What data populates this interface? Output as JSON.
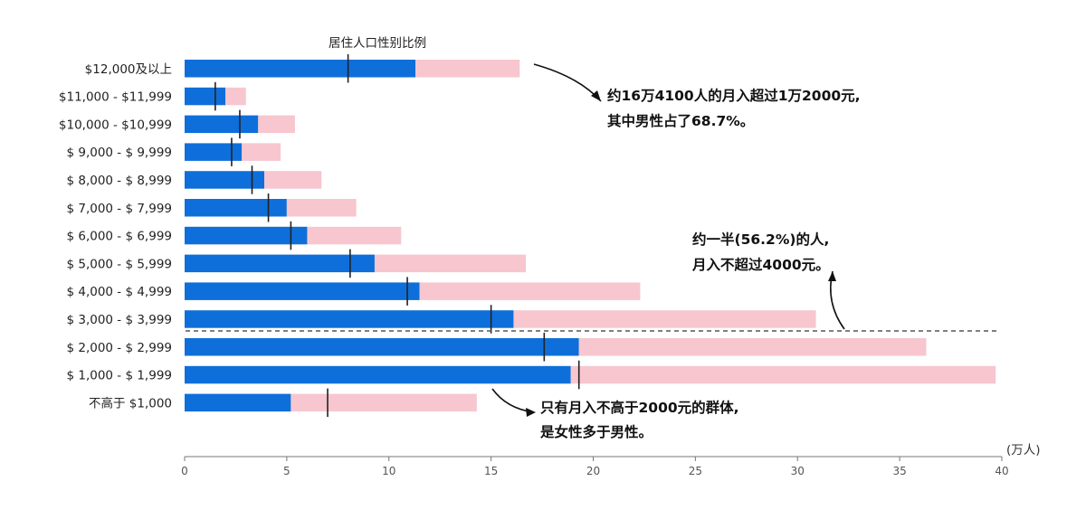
{
  "chart_data": {
    "type": "bar",
    "orientation": "horizontal",
    "stacked": true,
    "categories": [
      "$12,000及以上",
      "$11,000 - $11,999",
      "$10,000 - $10,999",
      "$ 9,000 - $ 9,999",
      "$ 8,000 - $ 8,999",
      "$ 7,000 - $ 7,999",
      "$ 6,000 - $ 6,999",
      "$ 5,000 - $ 5,999",
      "$ 4,000 - $ 4,999",
      "$ 3,000 - $ 3,999",
      "$ 2,000 - $ 2,999",
      "$ 1,000 - $ 1,999",
      "不高于 $1,000"
    ],
    "series": [
      {
        "values": [
          11.3,
          2.0,
          3.6,
          2.8,
          3.9,
          5.0,
          6.0,
          9.3,
          11.5,
          16.1,
          19.3,
          18.9,
          5.2
        ]
      },
      {
        "values": [
          5.1,
          1.0,
          1.8,
          1.9,
          2.8,
          3.4,
          4.6,
          7.4,
          10.8,
          14.8,
          17.0,
          20.8,
          9.1
        ]
      }
    ],
    "gender_ratio_marker": [
      8.0,
      1.5,
      2.7,
      2.3,
      3.3,
      4.1,
      5.2,
      8.1,
      10.9,
      15.0,
      17.6,
      19.3,
      7.0
    ],
    "colors": {
      "male": "#0e6fda",
      "female": "#f7c6cf",
      "marker": "#222222"
    },
    "marker_label": "居住人口性别比例",
    "x_unit": "(万人)",
    "xlim": [
      0,
      40
    ],
    "x_ticks": [
      0,
      5,
      10,
      15,
      20,
      25,
      30,
      35,
      40
    ],
    "grid": false,
    "divider_after_category": "$ 3,000 - $ 3,999",
    "annotations": [
      {
        "target": "$12,000及以上",
        "lines": [
          "约16万4100人的月入超过1万2000元,",
          "其中男性占了68.7%。"
        ]
      },
      {
        "target": "divider",
        "lines": [
          "约一半(56.2%)的人,",
          "月入不超过4000元。"
        ]
      },
      {
        "target": "不高于 $1,000",
        "lines": [
          "只有月入不高于2000元的群体,",
          "是女性多于男性。"
        ]
      }
    ]
  }
}
